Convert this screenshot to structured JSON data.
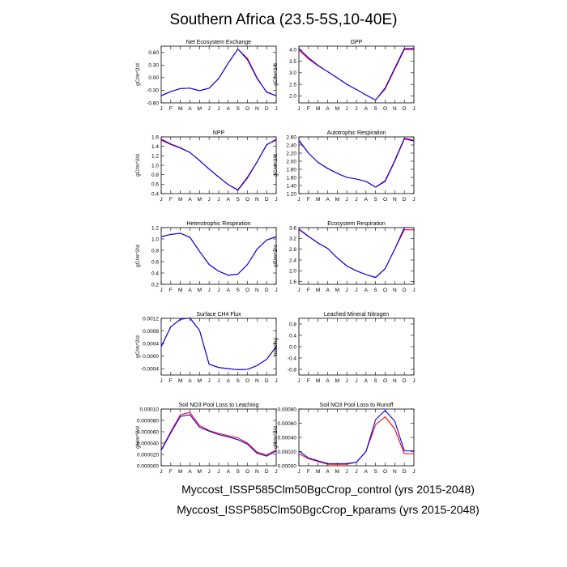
{
  "figure": {
    "title": "Southern Africa (23.5-5S,10-40E)",
    "legend": [
      {
        "label": "Myccost_ISSP585Clm50BgcCrop_control (yrs 2015-2048)",
        "color": "#0000ff"
      },
      {
        "label": "Myccost_ISSP585Clm50BgcCrop_kparams (yrs 2015-2048)",
        "color": "#ff0000"
      }
    ]
  },
  "chart_data": [
    {
      "type": "line",
      "title": "Net Ecosystem Exchange",
      "ylabel": "gC/m^2/d",
      "categories": [
        "J",
        "F",
        "M",
        "A",
        "M",
        "J",
        "J",
        "A",
        "S",
        "O",
        "N",
        "D",
        "J"
      ],
      "ylim": [
        -0.6,
        0.75
      ],
      "yticks": [
        -0.6,
        -0.3,
        0.0,
        0.3,
        0.6
      ],
      "ytick_labels": [
        "-0.60",
        "-0.30",
        "0.00",
        "0.30",
        "0.60"
      ],
      "series": [
        {
          "name": "control",
          "color": "#0000ff",
          "values": [
            -0.43,
            -0.33,
            -0.26,
            -0.25,
            -0.31,
            -0.25,
            -0.02,
            0.35,
            0.68,
            0.43,
            -0.02,
            -0.34,
            -0.43
          ]
        },
        {
          "name": "kparams",
          "color": "#ff0000",
          "values": [
            -0.43,
            -0.33,
            -0.26,
            -0.25,
            -0.31,
            -0.25,
            -0.02,
            0.35,
            0.68,
            0.46,
            0.0,
            -0.35,
            -0.43
          ]
        }
      ]
    },
    {
      "type": "line",
      "title": "GPP",
      "ylabel": "gC/m^2/d",
      "categories": [
        "J",
        "F",
        "M",
        "A",
        "M",
        "J",
        "J",
        "A",
        "S",
        "O",
        "N",
        "D",
        "J"
      ],
      "ylim": [
        1.7,
        4.15
      ],
      "yticks": [
        2.0,
        2.5,
        3.0,
        3.5,
        4.0
      ],
      "ytick_labels": [
        "2.0",
        "2.5",
        "3.0",
        "3.5",
        "4.0"
      ],
      "series": [
        {
          "name": "control",
          "color": "#0000ff",
          "values": [
            4.05,
            3.65,
            3.32,
            3.05,
            2.78,
            2.5,
            2.28,
            2.04,
            1.82,
            2.35,
            3.2,
            4.05,
            4.05
          ]
        },
        {
          "name": "kparams",
          "color": "#ff0000",
          "values": [
            3.98,
            3.6,
            3.3,
            3.05,
            2.78,
            2.5,
            2.28,
            2.04,
            1.82,
            2.3,
            3.15,
            4.0,
            4.0
          ]
        }
      ]
    },
    {
      "type": "line",
      "title": "NPP",
      "ylabel": "gC/m^2/d",
      "categories": [
        "J",
        "F",
        "M",
        "A",
        "M",
        "J",
        "J",
        "A",
        "S",
        "O",
        "N",
        "D",
        "J"
      ],
      "ylim": [
        0.4,
        1.6
      ],
      "yticks": [
        0.4,
        0.6,
        0.8,
        1.0,
        1.2,
        1.4,
        1.6
      ],
      "ytick_labels": [
        "0.4",
        "0.6",
        "0.8",
        "1.0",
        "1.2",
        "1.4",
        "1.6"
      ],
      "series": [
        {
          "name": "control",
          "color": "#0000ff",
          "values": [
            1.55,
            1.45,
            1.37,
            1.27,
            1.1,
            0.92,
            0.75,
            0.59,
            0.47,
            0.73,
            1.07,
            1.43,
            1.55
          ]
        },
        {
          "name": "kparams",
          "color": "#ff0000",
          "values": [
            1.53,
            1.44,
            1.36,
            1.27,
            1.1,
            0.92,
            0.75,
            0.59,
            0.48,
            0.75,
            1.07,
            1.44,
            1.53
          ]
        }
      ]
    },
    {
      "type": "line",
      "title": "Autotrophic Respiration",
      "ylabel": "gC/m^2/d",
      "categories": [
        "J",
        "F",
        "M",
        "A",
        "M",
        "J",
        "J",
        "A",
        "S",
        "O",
        "N",
        "D",
        "J"
      ],
      "ylim": [
        1.2,
        2.6
      ],
      "yticks": [
        1.2,
        1.4,
        1.6,
        1.8,
        2.0,
        2.2,
        2.4,
        2.6
      ],
      "ytick_labels": [
        "1.20",
        "1.40",
        "1.60",
        "1.80",
        "2.00",
        "2.20",
        "2.40",
        "2.60"
      ],
      "series": [
        {
          "name": "control",
          "color": "#0000ff",
          "values": [
            2.52,
            2.2,
            1.97,
            1.82,
            1.7,
            1.6,
            1.56,
            1.5,
            1.36,
            1.5,
            2.0,
            2.55,
            2.5
          ]
        },
        {
          "name": "kparams",
          "color": "#ff0000",
          "values": [
            2.5,
            2.2,
            1.97,
            1.82,
            1.7,
            1.6,
            1.56,
            1.5,
            1.36,
            1.52,
            2.02,
            2.57,
            2.52
          ]
        }
      ]
    },
    {
      "type": "line",
      "title": "Heterotrophic Respiration",
      "ylabel": "gC/m^2/d",
      "categories": [
        "J",
        "F",
        "M",
        "A",
        "M",
        "J",
        "J",
        "A",
        "S",
        "O",
        "N",
        "D",
        "J"
      ],
      "ylim": [
        0.2,
        1.2
      ],
      "yticks": [
        0.2,
        0.4,
        0.6,
        0.8,
        1.0,
        1.2
      ],
      "ytick_labels": [
        "0.2",
        "0.4",
        "0.6",
        "0.8",
        "1.0",
        "1.2"
      ],
      "series": [
        {
          "name": "control",
          "color": "#0000ff",
          "values": [
            1.04,
            1.08,
            1.1,
            1.03,
            0.78,
            0.55,
            0.43,
            0.36,
            0.38,
            0.55,
            0.82,
            0.98,
            1.04
          ]
        },
        {
          "name": "kparams",
          "color": "#ff0000",
          "values": [
            1.04,
            1.08,
            1.1,
            1.03,
            0.78,
            0.55,
            0.43,
            0.36,
            0.38,
            0.55,
            0.82,
            0.98,
            1.04
          ]
        }
      ]
    },
    {
      "type": "line",
      "title": "Ecosystem Respiration",
      "ylabel": "gC/m^2/d",
      "categories": [
        "J",
        "F",
        "M",
        "A",
        "M",
        "J",
        "J",
        "A",
        "S",
        "O",
        "N",
        "D",
        "J"
      ],
      "ylim": [
        1.5,
        3.6
      ],
      "yticks": [
        1.6,
        2.0,
        2.4,
        2.8,
        3.2,
        3.6
      ],
      "ytick_labels": [
        "1.6",
        "2.0",
        "2.4",
        "2.8",
        "3.2",
        "3.6"
      ],
      "series": [
        {
          "name": "control",
          "color": "#0000ff",
          "values": [
            3.55,
            3.28,
            3.03,
            2.83,
            2.48,
            2.18,
            2.0,
            1.86,
            1.75,
            2.08,
            2.8,
            3.6,
            3.6
          ]
        },
        {
          "name": "kparams",
          "color": "#ff0000",
          "values": [
            3.53,
            3.27,
            3.03,
            2.83,
            2.48,
            2.18,
            2.0,
            1.86,
            1.76,
            2.08,
            2.8,
            3.52,
            3.52
          ]
        }
      ]
    },
    {
      "type": "line",
      "title": "Surface CH4 Flux",
      "ylabel": "gC/m^2/d",
      "categories": [
        "J",
        "F",
        "M",
        "A",
        "M",
        "J",
        "J",
        "A",
        "S",
        "O",
        "N",
        "D",
        "J"
      ],
      "ylim": [
        -0.0006,
        0.0012
      ],
      "yticks": [
        -0.0004,
        0.0,
        0.0004,
        0.0008,
        0.0012
      ],
      "ytick_labels": [
        "-0.0004",
        "0.0000",
        "0.0004",
        "0.0008",
        "0.0012"
      ],
      "series": [
        {
          "name": "control",
          "color": "#0000ff",
          "values": [
            0.0003,
            0.00093,
            0.00117,
            0.00121,
            0.00082,
            -0.00026,
            -0.00036,
            -0.0004,
            -0.00043,
            -0.00042,
            -0.0003,
            -0.0001,
            0.0003
          ]
        },
        {
          "name": "kparams",
          "color": "#ff0000",
          "values": [
            0.0003,
            0.00093,
            0.00117,
            0.00121,
            0.00082,
            -0.00026,
            -0.00036,
            -0.0004,
            -0.00043,
            -0.00042,
            -0.0003,
            -0.0001,
            0.0003
          ]
        }
      ]
    },
    {
      "type": "line",
      "title": "Leached Mineral Nitrogen",
      "ylabel": "missing",
      "categories": [
        "J",
        "F",
        "M",
        "A",
        "M",
        "J",
        "J",
        "A",
        "S",
        "O",
        "N",
        "D",
        "J"
      ],
      "ylim": [
        -1.0,
        1.0
      ],
      "yticks": [
        -0.8,
        -0.4,
        0.0,
        0.4,
        0.8
      ],
      "ytick_labels": [
        "-0.8",
        "-0.4",
        "0.0",
        "0.4",
        "0.8"
      ],
      "series": []
    },
    {
      "type": "line",
      "title": "Soil NO3 Pool Loss to Leaching",
      "ylabel": "gN/m^2/d",
      "categories": [
        "J",
        "F",
        "M",
        "A",
        "M",
        "J",
        "J",
        "A",
        "S",
        "O",
        "N",
        "D",
        "J"
      ],
      "ylim": [
        0.0,
        0.0001
      ],
      "yticks": [
        0.0,
        2e-05,
        4e-05,
        6e-05,
        8e-05,
        0.0001
      ],
      "ytick_labels": [
        "0.000000",
        "0.000020",
        "0.000040",
        "0.000060",
        "0.000080",
        "0.00010"
      ],
      "series": [
        {
          "name": "control",
          "color": "#0000ff",
          "values": [
            2.7e-05,
            5.8e-05,
            8.7e-05,
            9e-05,
            6.8e-05,
            6.1e-05,
            5.5e-05,
            5.1e-05,
            4.6e-05,
            3.8e-05,
            2.2e-05,
            1.7e-05,
            2.6e-05
          ]
        },
        {
          "name": "kparams",
          "color": "#ff0000",
          "values": [
            2.8e-05,
            6e-05,
            9e-05,
            9.4e-05,
            7.1e-05,
            6.2e-05,
            5.7e-05,
            5.3e-05,
            4.9e-05,
            4e-05,
            2.4e-05,
            1.9e-05,
            2.8e-05
          ]
        }
      ]
    },
    {
      "type": "line",
      "title": "Soil NO3 Pool Loss to Runoff",
      "ylabel": "gN/m^2/d",
      "categories": [
        "J",
        "F",
        "M",
        "A",
        "M",
        "J",
        "J",
        "A",
        "S",
        "O",
        "N",
        "D",
        "J"
      ],
      "ylim": [
        0.0,
        0.0008
      ],
      "yticks": [
        0.0,
        0.0002,
        0.0004,
        0.0006,
        0.0008
      ],
      "ytick_labels": [
        "0.00000",
        "0.00020",
        "0.00040",
        "0.00060",
        "0.00080"
      ],
      "series": [
        {
          "name": "control",
          "color": "#0000ff",
          "values": [
            0.00021,
            0.00011,
            7e-05,
            3e-05,
            3e-05,
            3e-05,
            5e-05,
            0.0002,
            0.00065,
            0.00078,
            0.00063,
            0.00021,
            0.00021
          ]
        },
        {
          "name": "kparams",
          "color": "#ff0000",
          "values": [
            0.00017,
            0.0001,
            6e-05,
            2e-05,
            2e-05,
            2e-05,
            5e-05,
            0.0002,
            0.00058,
            0.00069,
            0.00052,
            0.00017,
            0.00017
          ]
        }
      ]
    }
  ]
}
